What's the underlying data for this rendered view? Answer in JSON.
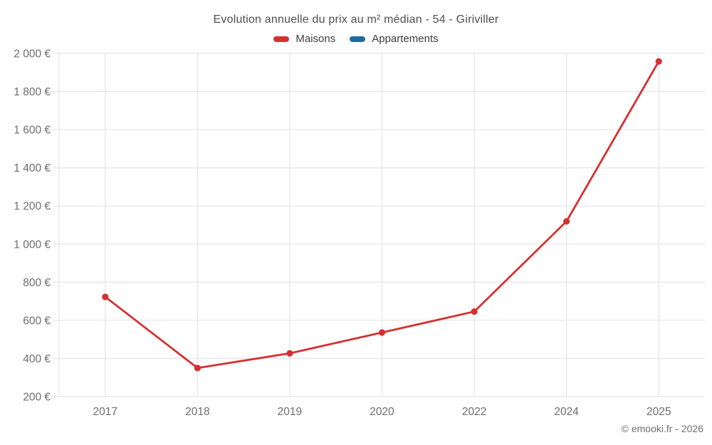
{
  "title": "Evolution annuelle du prix au m² médian - 54 - Giriviller",
  "footer": "© emooki.fr - 2026",
  "colors": {
    "maisons": "#d63031",
    "appartements": "#1a6ca4",
    "grid": "#e7e7e7",
    "axis_text": "#6e6e6e",
    "title_text": "#4e4e4e",
    "legend_text": "#3c3c3c"
  },
  "legend": {
    "items": [
      {
        "label": "Maisons",
        "color": "#d63031"
      },
      {
        "label": "Appartements",
        "color": "#1a6ca4"
      }
    ]
  },
  "chart_data": {
    "type": "line",
    "title": "Evolution annuelle du prix au m² médian - 54 - Giriviller",
    "categories": [
      "2017",
      "2018",
      "2019",
      "2020",
      "2022",
      "2024",
      "2025"
    ],
    "series": [
      {
        "name": "Maisons",
        "color": "#d63031",
        "values": [
          723,
          350,
          427,
          536,
          646,
          1119,
          1958
        ]
      },
      {
        "name": "Appartements",
        "color": "#1a6ca4",
        "values": []
      }
    ],
    "xlabel": "",
    "ylabel": "",
    "ylim": [
      200,
      2000
    ],
    "ytick_step": 200,
    "ytick_labels": [
      "200 €",
      "400 €",
      "600 €",
      "800 €",
      "1 000 €",
      "1 200 €",
      "1 400 €",
      "1 600 €",
      "1 800 €",
      "2 000 €"
    ],
    "grid": true,
    "legend_position": "top",
    "marker": "circle"
  }
}
